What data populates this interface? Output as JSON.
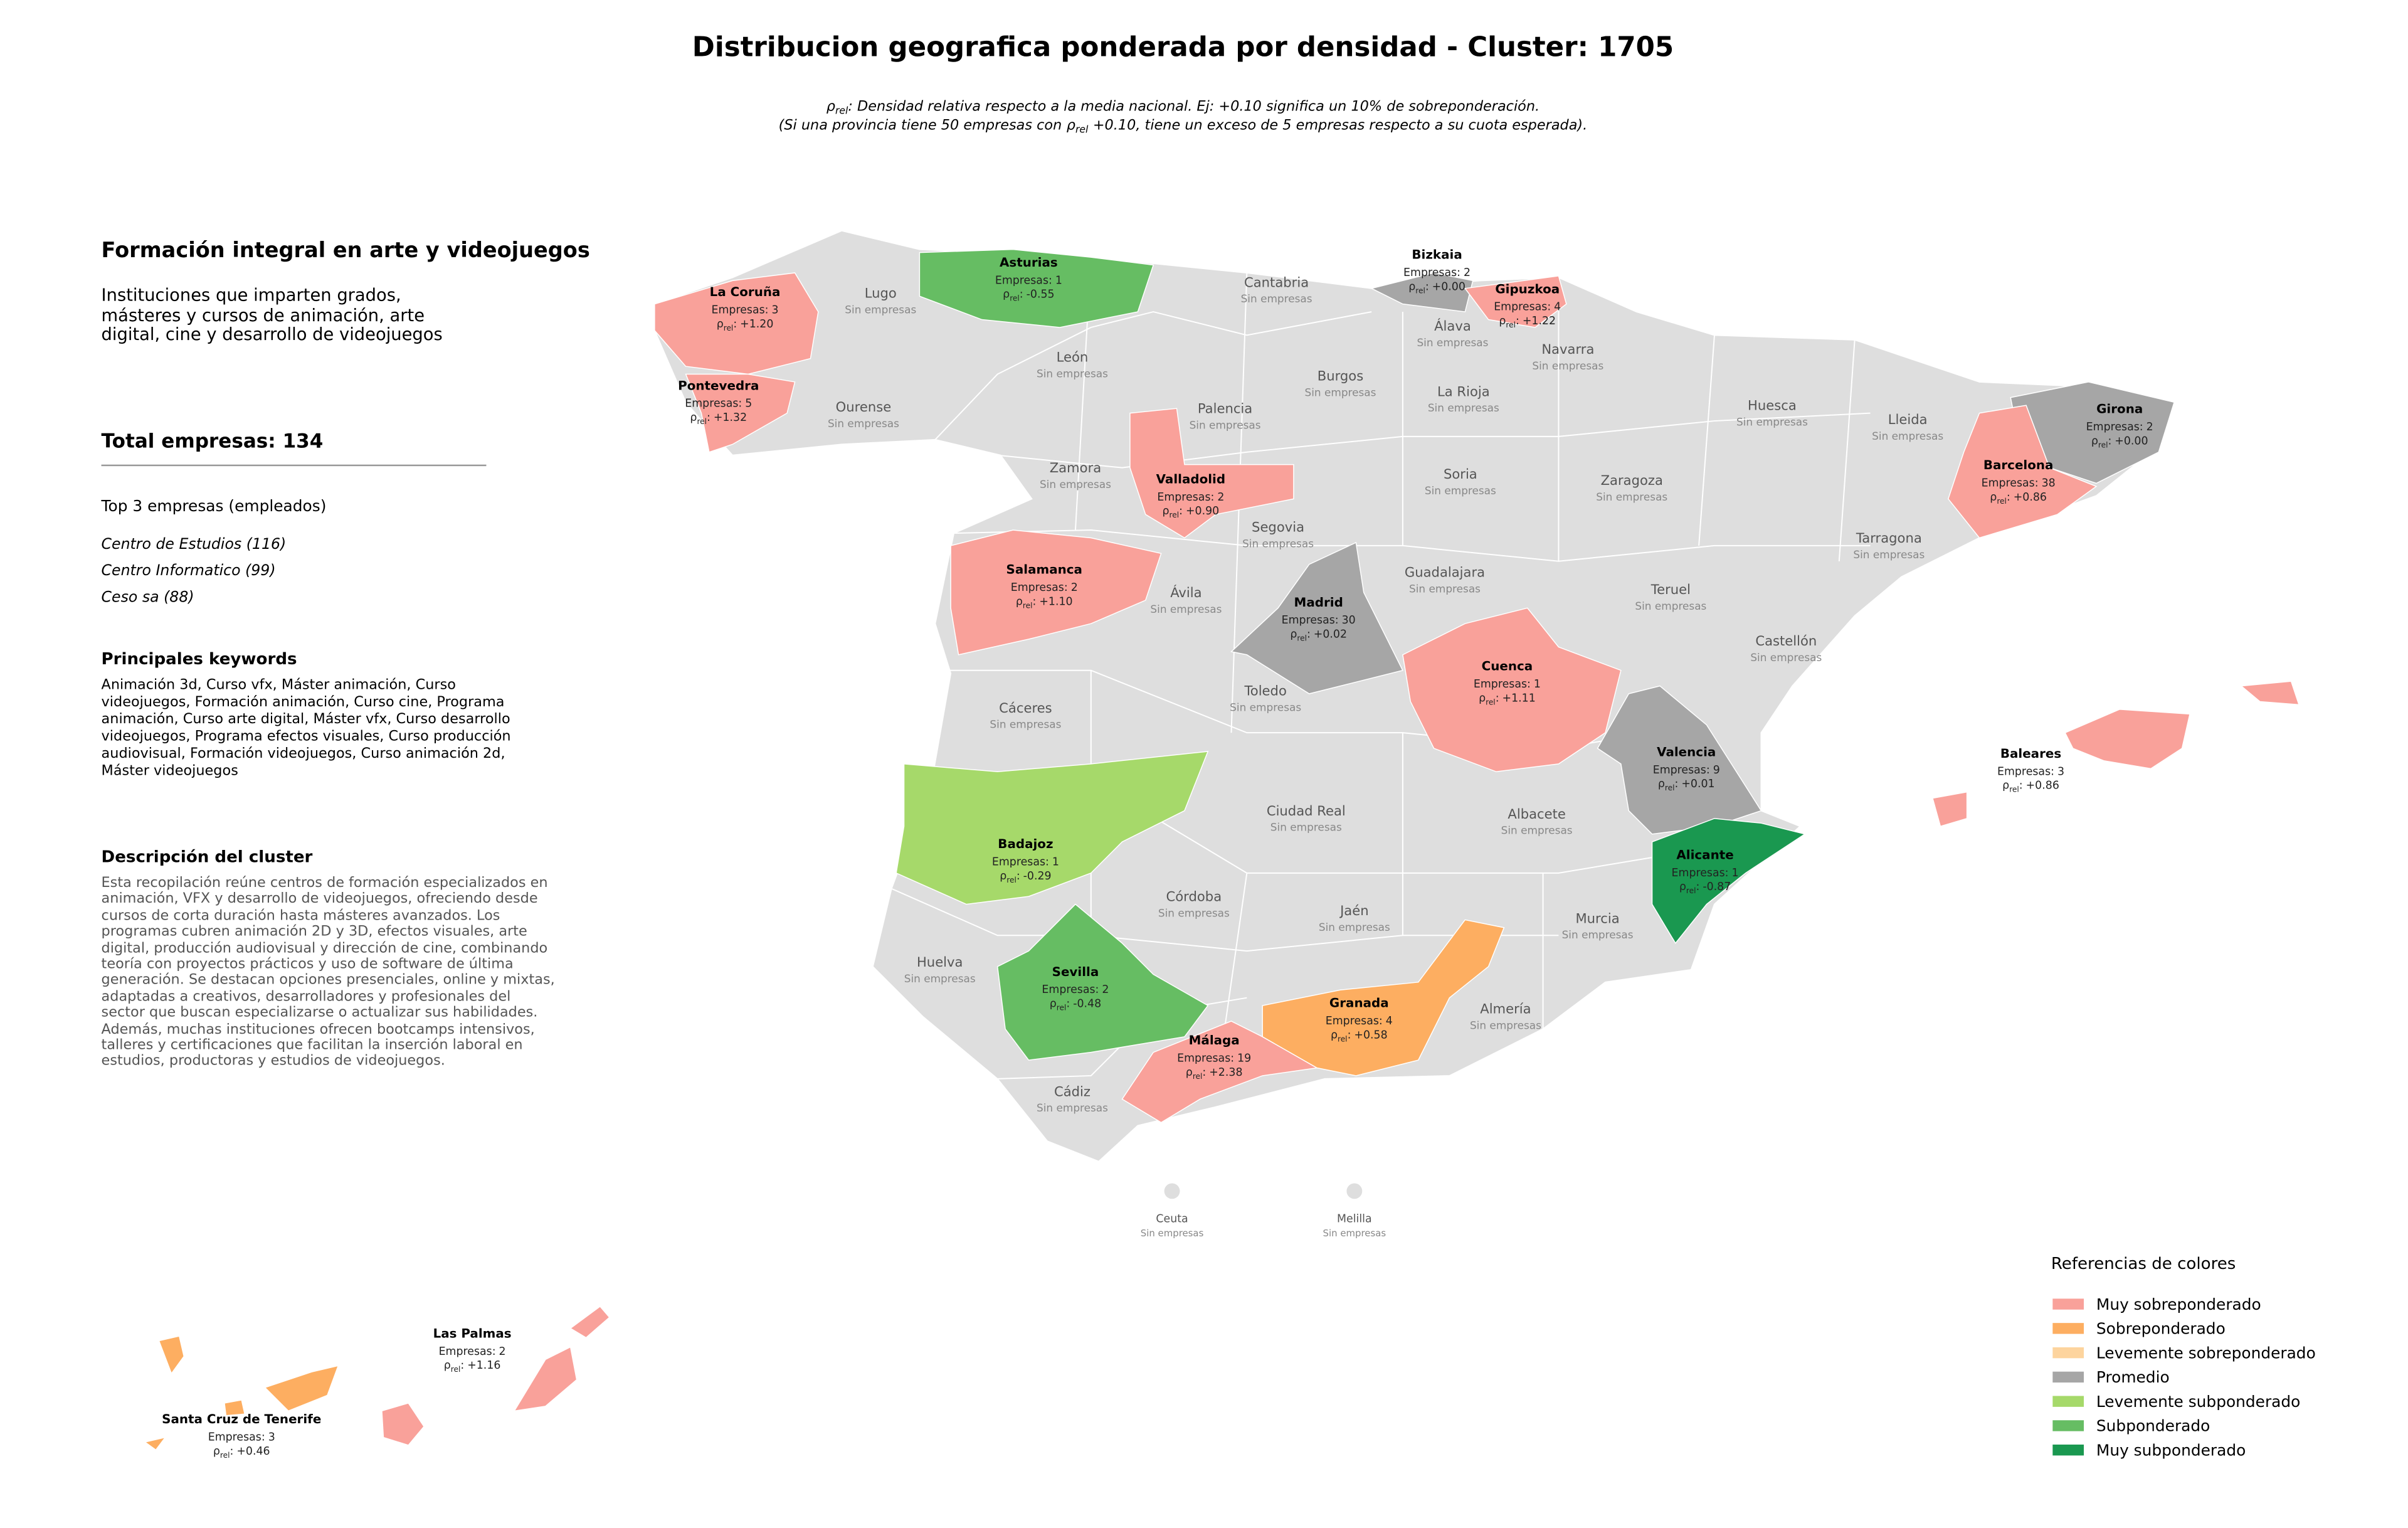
{
  "title": "Distribucion geografica ponderada por densidad - Cluster: 1705",
  "rho_symbol": "ρ",
  "rho_sub": "rel",
  "rho_suffix": ":",
  "subtitle": {
    "line1": ": Densidad relativa respecto a la media nacional. Ej: +0.10 significa un 10% de sobreponderación.",
    "line2_start": "(Si una provincia tiene 50 empresas con",
    "line2_end": "+0.10, tiene un exceso de 5 empresas respecto a su cuota esperada)."
  },
  "sidebar": {
    "heading": "Formación integral en arte y videojuegos",
    "description": "Instituciones que imparten grados, másteres y cursos de animación, arte digital, cine y desarrollo de videojuegos",
    "total_label": "Total empresas:",
    "total": 134,
    "top_label": "Top 3 empresas (empleados)",
    "top_companies": [
      "Centro de Estudios (116)",
      "Centro Informatico (99)",
      "Ceso sa (88)"
    ],
    "keywords_heading": "Principales keywords",
    "keywords": "Animación 3d, Curso vfx, Máster animación, Curso videojuegos, Formación animación, Curso cine, Programa animación, Curso arte digital, Máster vfx, Curso desarrollo videojuegos, Programa efectos visuales, Curso producción audiovisual, Formación videojuegos, Curso animación 2d, Máster videojuegos",
    "cluster_heading": "Descripción del cluster",
    "cluster_text": "Esta recopilación reúne centros de formación especializados en animación, VFX y desarrollo de videojuegos, ofreciendo desde cursos de corta duración hasta másteres avanzados. Los programas cubren animación 2D y 3D, efectos visuales, arte digital, producción audiovisual y dirección de cine, combinando teoría con proyectos prácticos y uso de software de última generación. Se destacan opciones presenciales, online y mixtas, adaptadas a creativos, desarrolladores y profesionales del sector que buscan especializarse o actualizar sus habilidades. Además, muchas instituciones ofrecen bootcamps intensivos, talleres y certificaciones que facilitan la inserción laboral en estudios, productoras y estudios de videojuegos."
  },
  "companies_prefix": "Empresas:",
  "empty_label": "Sin empresas",
  "provinces": [
    {
      "name": "La Coruña",
      "empresas": 3,
      "rho": "+1.20",
      "color": "#f9a19a"
    },
    {
      "name": "Pontevedra",
      "empresas": 5,
      "rho": "+1.32",
      "color": "#f9a19a"
    },
    {
      "name": "Asturias",
      "empresas": 1,
      "rho": "-0.55",
      "color": "#66bd63"
    },
    {
      "name": "Bizkaia",
      "empresas": 2,
      "rho": "+0.00",
      "color": "#a6a6a6"
    },
    {
      "name": "Gipuzkoa",
      "empresas": 4,
      "rho": "+1.22",
      "color": "#f9a19a"
    },
    {
      "name": "Girona",
      "empresas": 2,
      "rho": "+0.00",
      "color": "#a6a6a6"
    },
    {
      "name": "Barcelona",
      "empresas": 38,
      "rho": "+0.86",
      "color": "#f9a19a"
    },
    {
      "name": "Valladolid",
      "empresas": 2,
      "rho": "+0.90",
      "color": "#f9a19a"
    },
    {
      "name": "Salamanca",
      "empresas": 2,
      "rho": "+1.10",
      "color": "#f9a19a"
    },
    {
      "name": "Madrid",
      "empresas": 30,
      "rho": "+0.02",
      "color": "#a6a6a6"
    },
    {
      "name": "Cuenca",
      "empresas": 1,
      "rho": "+1.11",
      "color": "#f9a19a"
    },
    {
      "name": "Valencia",
      "empresas": 9,
      "rho": "+0.01",
      "color": "#a6a6a6"
    },
    {
      "name": "Alicante",
      "empresas": 1,
      "rho": "-0.87",
      "color": "#1a9850"
    },
    {
      "name": "Badajoz",
      "empresas": 1,
      "rho": "-0.29",
      "color": "#a6d96a"
    },
    {
      "name": "Sevilla",
      "empresas": 2,
      "rho": "-0.48",
      "color": "#66bd63"
    },
    {
      "name": "Málaga",
      "empresas": 19,
      "rho": "+2.38",
      "color": "#f9a19a"
    },
    {
      "name": "Granada",
      "empresas": 4,
      "rho": "+0.58",
      "color": "#fdae61"
    },
    {
      "name": "Baleares",
      "empresas": 3,
      "rho": "+0.86",
      "color": "#f9a19a"
    },
    {
      "name": "Las Palmas",
      "empresas": 2,
      "rho": "+1.16",
      "color": "#f9a19a"
    },
    {
      "name": "Santa Cruz de Tenerife",
      "empresas": 3,
      "rho": "+0.46",
      "color": "#fdae61"
    },
    {
      "name": "Lugo"
    },
    {
      "name": "Cantabria"
    },
    {
      "name": "Álava"
    },
    {
      "name": "Navarra"
    },
    {
      "name": "León"
    },
    {
      "name": "Ourense"
    },
    {
      "name": "Burgos"
    },
    {
      "name": "Palencia"
    },
    {
      "name": "La Rioja"
    },
    {
      "name": "Huesca"
    },
    {
      "name": "Lleida"
    },
    {
      "name": "Zamora"
    },
    {
      "name": "Soria"
    },
    {
      "name": "Zaragoza"
    },
    {
      "name": "Segovia"
    },
    {
      "name": "Tarragona"
    },
    {
      "name": "Guadalajara"
    },
    {
      "name": "Ávila"
    },
    {
      "name": "Teruel"
    },
    {
      "name": "Castellón"
    },
    {
      "name": "Toledo"
    },
    {
      "name": "Cáceres"
    },
    {
      "name": "Ciudad Real"
    },
    {
      "name": "Albacete"
    },
    {
      "name": "Córdoba"
    },
    {
      "name": "Jaén"
    },
    {
      "name": "Huelva"
    },
    {
      "name": "Murcia"
    },
    {
      "name": "Almería"
    },
    {
      "name": "Cádiz"
    },
    {
      "name": "Ceuta"
    },
    {
      "name": "Melilla"
    }
  ],
  "legend": {
    "title": "Referencias de colores",
    "items": [
      {
        "name": "Muy sobreponderado",
        "color": "#f9a19a"
      },
      {
        "name": "Sobreponderado",
        "color": "#fdae61"
      },
      {
        "name": "Levemente sobreponderado",
        "color": "#fdd49e"
      },
      {
        "name": "Promedio",
        "color": "#a6a6a6"
      },
      {
        "name": "Levemente subponderado",
        "color": "#a6d96a"
      },
      {
        "name": "Subponderado",
        "color": "#66bd63"
      },
      {
        "name": "Muy subponderado",
        "color": "#1a9850"
      }
    ]
  }
}
